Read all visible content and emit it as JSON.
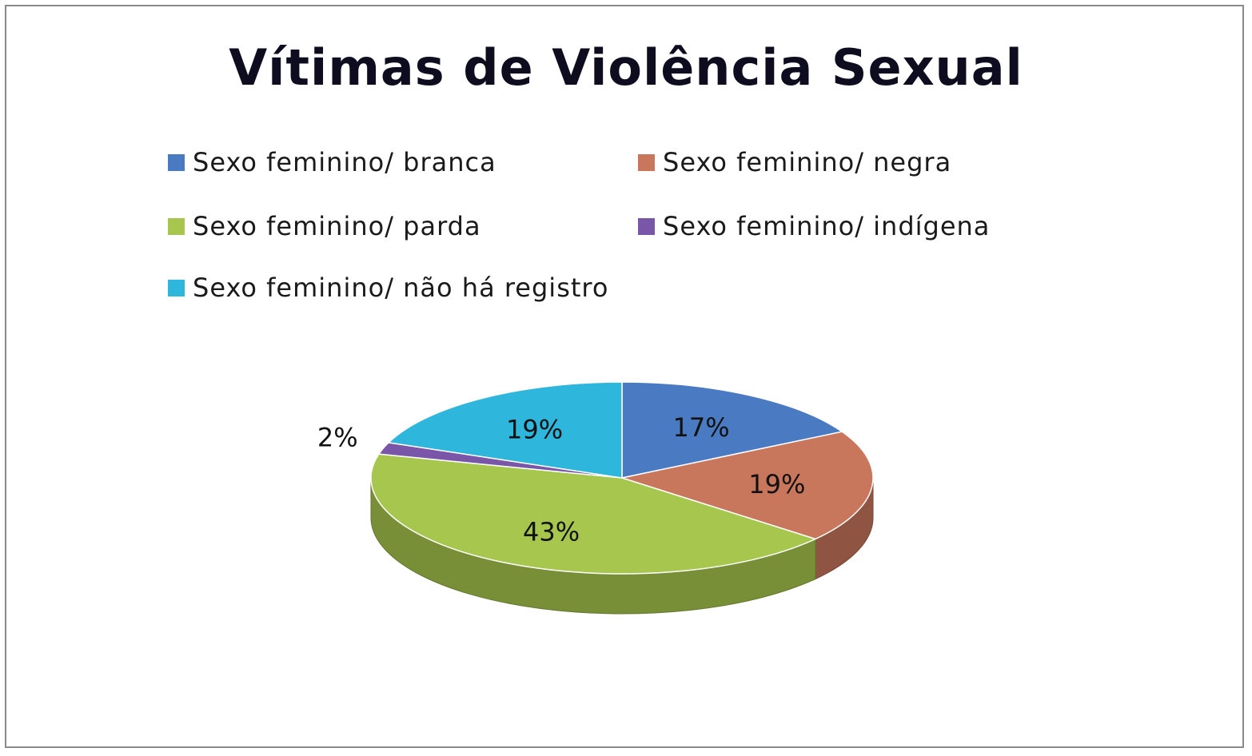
{
  "chart_data": {
    "type": "pie",
    "title": "Vítimas de Violência Sexual",
    "legend_position": "top",
    "slices": [
      {
        "label": "Sexo feminino/ branca",
        "value": 17,
        "display": "17%",
        "color": "#4a7ac2"
      },
      {
        "label": "Sexo feminino/ negra",
        "value": 19,
        "display": "19%",
        "color": "#c8765c"
      },
      {
        "label": "Sexo feminino/ parda",
        "value": 43,
        "display": "43%",
        "color": "#a6c64e"
      },
      {
        "label": "Sexo feminino/ indígena",
        "value": 2,
        "display": "2%",
        "color": "#7a56a8"
      },
      {
        "label": "Sexo feminino/ não há registro",
        "value": 19,
        "display": "19%",
        "color": "#2fb6dc"
      }
    ]
  }
}
